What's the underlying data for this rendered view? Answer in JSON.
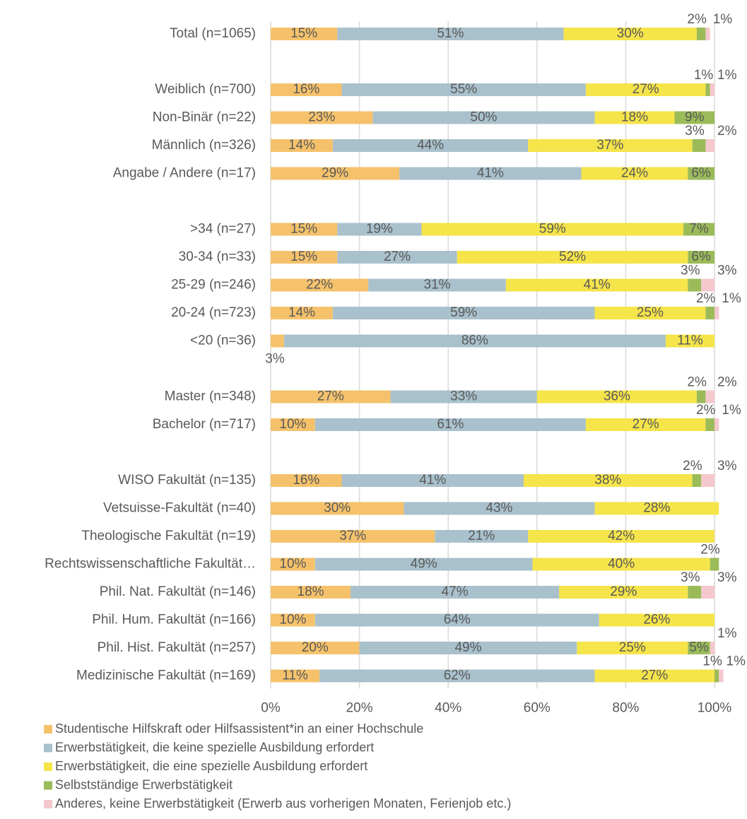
{
  "chart_data": {
    "type": "stacked-barh",
    "categories": [
      "Total (n=1065)",
      null,
      "Weiblich (n=700)",
      "Non-Binär (n=22)",
      "Männlich (n=326)",
      "Angabe / Andere (n=17)",
      null,
      ">34 (n=27)",
      "30-34 (n=33)",
      "25-29 (n=246)",
      "20-24 (n=723)",
      "<20 (n=36)",
      null,
      "Master (n=348)",
      "Bachelor (n=717)",
      null,
      "WISO Fakultät (n=135)",
      "Vetsuisse-Fakultät (n=40)",
      "Theologische Fakultät (n=19)",
      "Rechtswissenschaftliche Fakultät…",
      "Phil. Nat. Fakultät (n=146)",
      "Phil. Hum. Fakultät (n=166)",
      "Phil. Hist. Fakultät (n=257)",
      "Medizinische Fakultät (n=169)"
    ],
    "series": [
      {
        "name": "Studentische Hilfskraft oder Hilfsassistent*in an einer Hochschule",
        "color": "#f5c26b",
        "values": [
          15,
          null,
          16,
          23,
          14,
          29,
          null,
          15,
          15,
          22,
          14,
          3,
          null,
          27,
          10,
          null,
          16,
          30,
          37,
          10,
          18,
          10,
          20,
          11
        ],
        "value_labels": [
          "15%",
          null,
          "16%",
          "23%",
          "14%",
          "29%",
          null,
          "15%",
          "15%",
          "22%",
          "14%",
          "3%",
          null,
          "27%",
          "10%",
          null,
          "16%",
          "30%",
          "37%",
          "10%",
          "18%",
          "10%",
          "20%",
          "11%"
        ]
      },
      {
        "name": "Erwerbstätigkeit, die keine spezielle Ausbildung erfordert",
        "color": "#a9c1cc",
        "values": [
          51,
          null,
          55,
          50,
          44,
          41,
          null,
          19,
          27,
          31,
          59,
          86,
          null,
          33,
          61,
          null,
          41,
          43,
          21,
          49,
          47,
          64,
          49,
          62
        ],
        "value_labels": [
          "51%",
          null,
          "55%",
          "50%",
          "44%",
          "41%",
          null,
          "19%",
          "27%",
          "31%",
          "59%",
          "86%",
          null,
          "33%",
          "61%",
          null,
          "41%",
          "43%",
          "21%",
          "49%",
          "47%",
          "64%",
          "49%",
          "62%"
        ]
      },
      {
        "name": "Erwerbstätigkeit, die eine spezielle Ausbildung erfordert",
        "color": "#f5e44a",
        "values": [
          30,
          null,
          27,
          18,
          37,
          24,
          null,
          59,
          52,
          41,
          25,
          11,
          null,
          36,
          27,
          null,
          38,
          28,
          42,
          40,
          29,
          26,
          25,
          27
        ],
        "value_labels": [
          "30%",
          null,
          "27%",
          "18%",
          "37%",
          "24%",
          null,
          "59%",
          "52%",
          "41%",
          "25%",
          "11%",
          null,
          "36%",
          "27%",
          null,
          "38%",
          "28%",
          "42%",
          "40%",
          "29%",
          "26%",
          "25%",
          "27%"
        ]
      },
      {
        "name": "Selbstständige Erwerbstätigkeit",
        "color": "#9bbb59",
        "values": [
          2,
          null,
          1,
          9,
          3,
          6,
          null,
          7,
          6,
          3,
          2,
          null,
          null,
          2,
          2,
          null,
          2,
          null,
          null,
          2,
          3,
          null,
          5,
          1
        ],
        "value_labels": [
          "2%",
          null,
          "1%",
          "9%",
          "3%",
          "6%",
          null,
          "7%",
          "6%",
          "3%",
          "2%",
          null,
          null,
          "2%",
          "2%",
          null,
          "2%",
          null,
          null,
          "2%",
          "3%",
          null,
          "5%",
          "1%"
        ]
      },
      {
        "name": "Anderes, keine Erwerbstätigkeit (Erwerb aus vorherigen Monaten, Ferienjob etc.)",
        "color": "#f4c8cc",
        "values": [
          1,
          null,
          1,
          null,
          2,
          null,
          null,
          null,
          null,
          3,
          1,
          null,
          null,
          2,
          1,
          null,
          3,
          null,
          null,
          null,
          3,
          null,
          1,
          1
        ],
        "value_labels": [
          "1%",
          null,
          "1%",
          null,
          "2%",
          null,
          null,
          null,
          null,
          "3%",
          "1%",
          null,
          null,
          "2%",
          "1%",
          null,
          "3%",
          null,
          null,
          null,
          "3%",
          null,
          "1%",
          "1%"
        ]
      }
    ],
    "xlim": [
      0,
      100
    ],
    "xticks": [
      {
        "value": 0,
        "label": "0%"
      },
      {
        "value": 20,
        "label": "20%"
      },
      {
        "value": 40,
        "label": "40%"
      },
      {
        "value": 60,
        "label": "60%"
      },
      {
        "value": 80,
        "label": "80%"
      },
      {
        "value": 100,
        "label": "100%"
      }
    ],
    "grid": true
  }
}
